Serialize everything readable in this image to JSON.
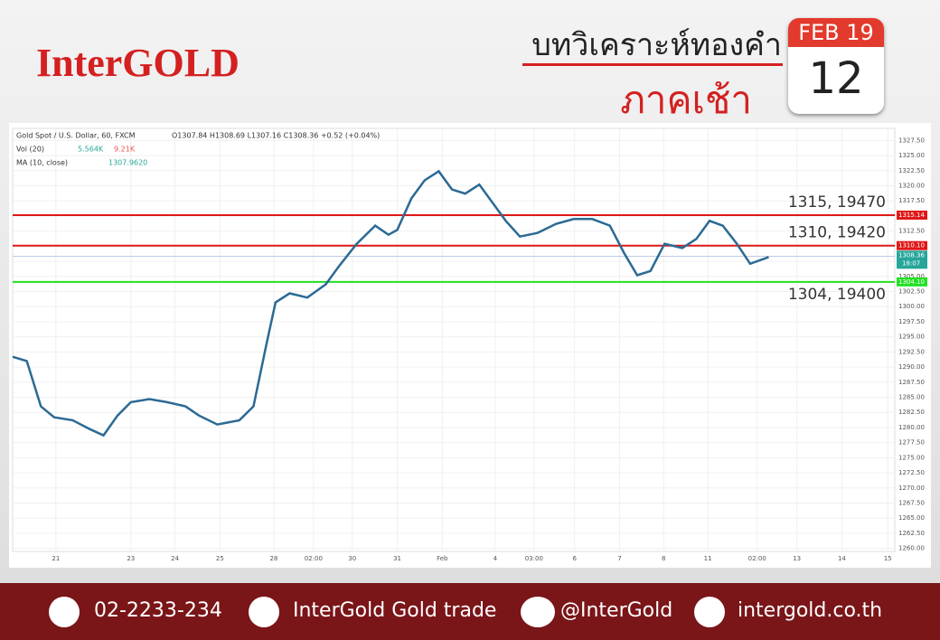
{
  "header": {
    "brand": "InterGOLD",
    "title": "บทวิเคราะห์ทองคำ",
    "subtitle": "ภาคเช้า",
    "date_month": "FEB 19",
    "date_day": "12"
  },
  "chart_data": {
    "type": "line",
    "legend": {
      "symbol": "Gold Spot / U.S. Dollar, 60, FXCM",
      "ohlc": "O1307.84 H1308.69 L1307.16 C1308.36 +0.52 (+0.04%)",
      "vol": "Vol (20)",
      "vol_a": "5.564K",
      "vol_b": "9.21K",
      "ma": "MA (10, close)",
      "ma_value": "1307.9620"
    },
    "x": [
      0,
      1.6,
      3.2,
      4.7,
      6.8,
      8.8,
      10.3,
      11.9,
      13.4,
      15.5,
      17.5,
      19.6,
      21.1,
      23.2,
      25.7,
      27.3,
      28.8,
      29.8,
      31.4,
      33.4,
      35.5,
      37,
      39,
      41.1,
      42.6,
      43.6,
      45.2,
      46.7,
      48.3,
      49.8,
      51.3,
      52.9,
      54.4,
      55.9,
      57.5,
      59.5,
      61.6,
      63.6,
      65.7,
      67.7,
      69.3,
      70.8,
      72.3,
      73.9,
      75.9,
      77.5,
      79,
      80.5,
      82.1,
      83.6,
      85.7
    ],
    "series": [
      {
        "name": "MA (10, close)",
        "color": "#2b6a94",
        "values": [
          1291.7,
          1291,
          1283.5,
          1281.7,
          1281.2,
          1279.7,
          1278.7,
          1282,
          1284.2,
          1284.7,
          1284.2,
          1283.5,
          1282,
          1280.5,
          1281.2,
          1283.5,
          1294,
          1300.7,
          1302.2,
          1301.5,
          1303.7,
          1306.7,
          1310.4,
          1313.4,
          1311.9,
          1312.7,
          1317.9,
          1320.9,
          1322.4,
          1319.4,
          1318.7,
          1320.2,
          1317.2,
          1314.2,
          1311.6,
          1312.2,
          1313.7,
          1314.5,
          1314.5,
          1313.4,
          1308.9,
          1305.2,
          1305.9,
          1310.4,
          1309.7,
          1311.2,
          1314.2,
          1313.4,
          1310.4,
          1307.1,
          1308.2
        ]
      }
    ],
    "xlim": [
      0,
      100
    ],
    "xticks": [
      {
        "value": 4.9,
        "label": "21"
      },
      {
        "value": 13.4,
        "label": "23"
      },
      {
        "value": 18.4,
        "label": "24"
      },
      {
        "value": 23.5,
        "label": "25"
      },
      {
        "value": 29.6,
        "label": "28"
      },
      {
        "value": 34.1,
        "label": "02:00"
      },
      {
        "value": 38.5,
        "label": "30"
      },
      {
        "value": 43.6,
        "label": "31"
      },
      {
        "value": 48.7,
        "label": "Feb"
      },
      {
        "value": 54.7,
        "label": "4"
      },
      {
        "value": 59.1,
        "label": "03:00"
      },
      {
        "value": 63.7,
        "label": "6"
      },
      {
        "value": 68.8,
        "label": "7"
      },
      {
        "value": 73.8,
        "label": "8"
      },
      {
        "value": 78.8,
        "label": "11"
      },
      {
        "value": 84.4,
        "label": "02:00"
      },
      {
        "value": 88.9,
        "label": "13"
      },
      {
        "value": 94,
        "label": "14"
      },
      {
        "value": 99.2,
        "label": "15"
      }
    ],
    "ylim": [
      1259.5,
      1329.5
    ],
    "yticks": [
      {
        "value": 1260,
        "label": "1260.00"
      },
      {
        "value": 1262.5,
        "label": "1262.50"
      },
      {
        "value": 1265,
        "label": "1265.00"
      },
      {
        "value": 1267.5,
        "label": "1267.50"
      },
      {
        "value": 1270,
        "label": "1270.00"
      },
      {
        "value": 1272.5,
        "label": "1272.50"
      },
      {
        "value": 1275,
        "label": "1275.00"
      },
      {
        "value": 1277.5,
        "label": "1277.50"
      },
      {
        "value": 1280,
        "label": "1280.00"
      },
      {
        "value": 1282.5,
        "label": "1282.50"
      },
      {
        "value": 1285,
        "label": "1285.00"
      },
      {
        "value": 1287.5,
        "label": "1287.50"
      },
      {
        "value": 1290,
        "label": "1290.00"
      },
      {
        "value": 1292.5,
        "label": "1292.50"
      },
      {
        "value": 1295,
        "label": "1295.00"
      },
      {
        "value": 1297.5,
        "label": "1297.50"
      },
      {
        "value": 1300,
        "label": "1300.00"
      },
      {
        "value": 1302.5,
        "label": "1302.50"
      },
      {
        "value": 1305,
        "label": "1305.00"
      },
      {
        "value": 1307.5,
        "label": "1307.50"
      },
      {
        "value": 1310,
        "label": "1310.00"
      },
      {
        "value": 1312.5,
        "label": "1312.50"
      },
      {
        "value": 1315,
        "label": "1315.00"
      },
      {
        "value": 1317.5,
        "label": "1317.50"
      },
      {
        "value": 1320,
        "label": "1320.00"
      },
      {
        "value": 1322.5,
        "label": "1322.50"
      },
      {
        "value": 1325,
        "label": "1325.00"
      },
      {
        "value": 1327.5,
        "label": "1327.50"
      }
    ],
    "levels": [
      {
        "value": 1315.14,
        "label": "1315.14",
        "color": "#e01818",
        "annotation": "1315, 19470"
      },
      {
        "value": 1310.1,
        "label": "1310.10",
        "color": "#e01818",
        "annotation": "1310, 19420"
      },
      {
        "value": 1304.1,
        "label": "1304.10",
        "color": "#22e022",
        "annotation": "1304, 19400"
      }
    ],
    "last_price": {
      "value": 1308.36,
      "label": "1308.36",
      "time": "18:07",
      "color": "#26a69a"
    },
    "grid": true
  },
  "footer": {
    "phone": "02-2233-234",
    "facebook": "InterGold Gold trade",
    "line": "@InterGold",
    "web": "intergold.co.th"
  }
}
